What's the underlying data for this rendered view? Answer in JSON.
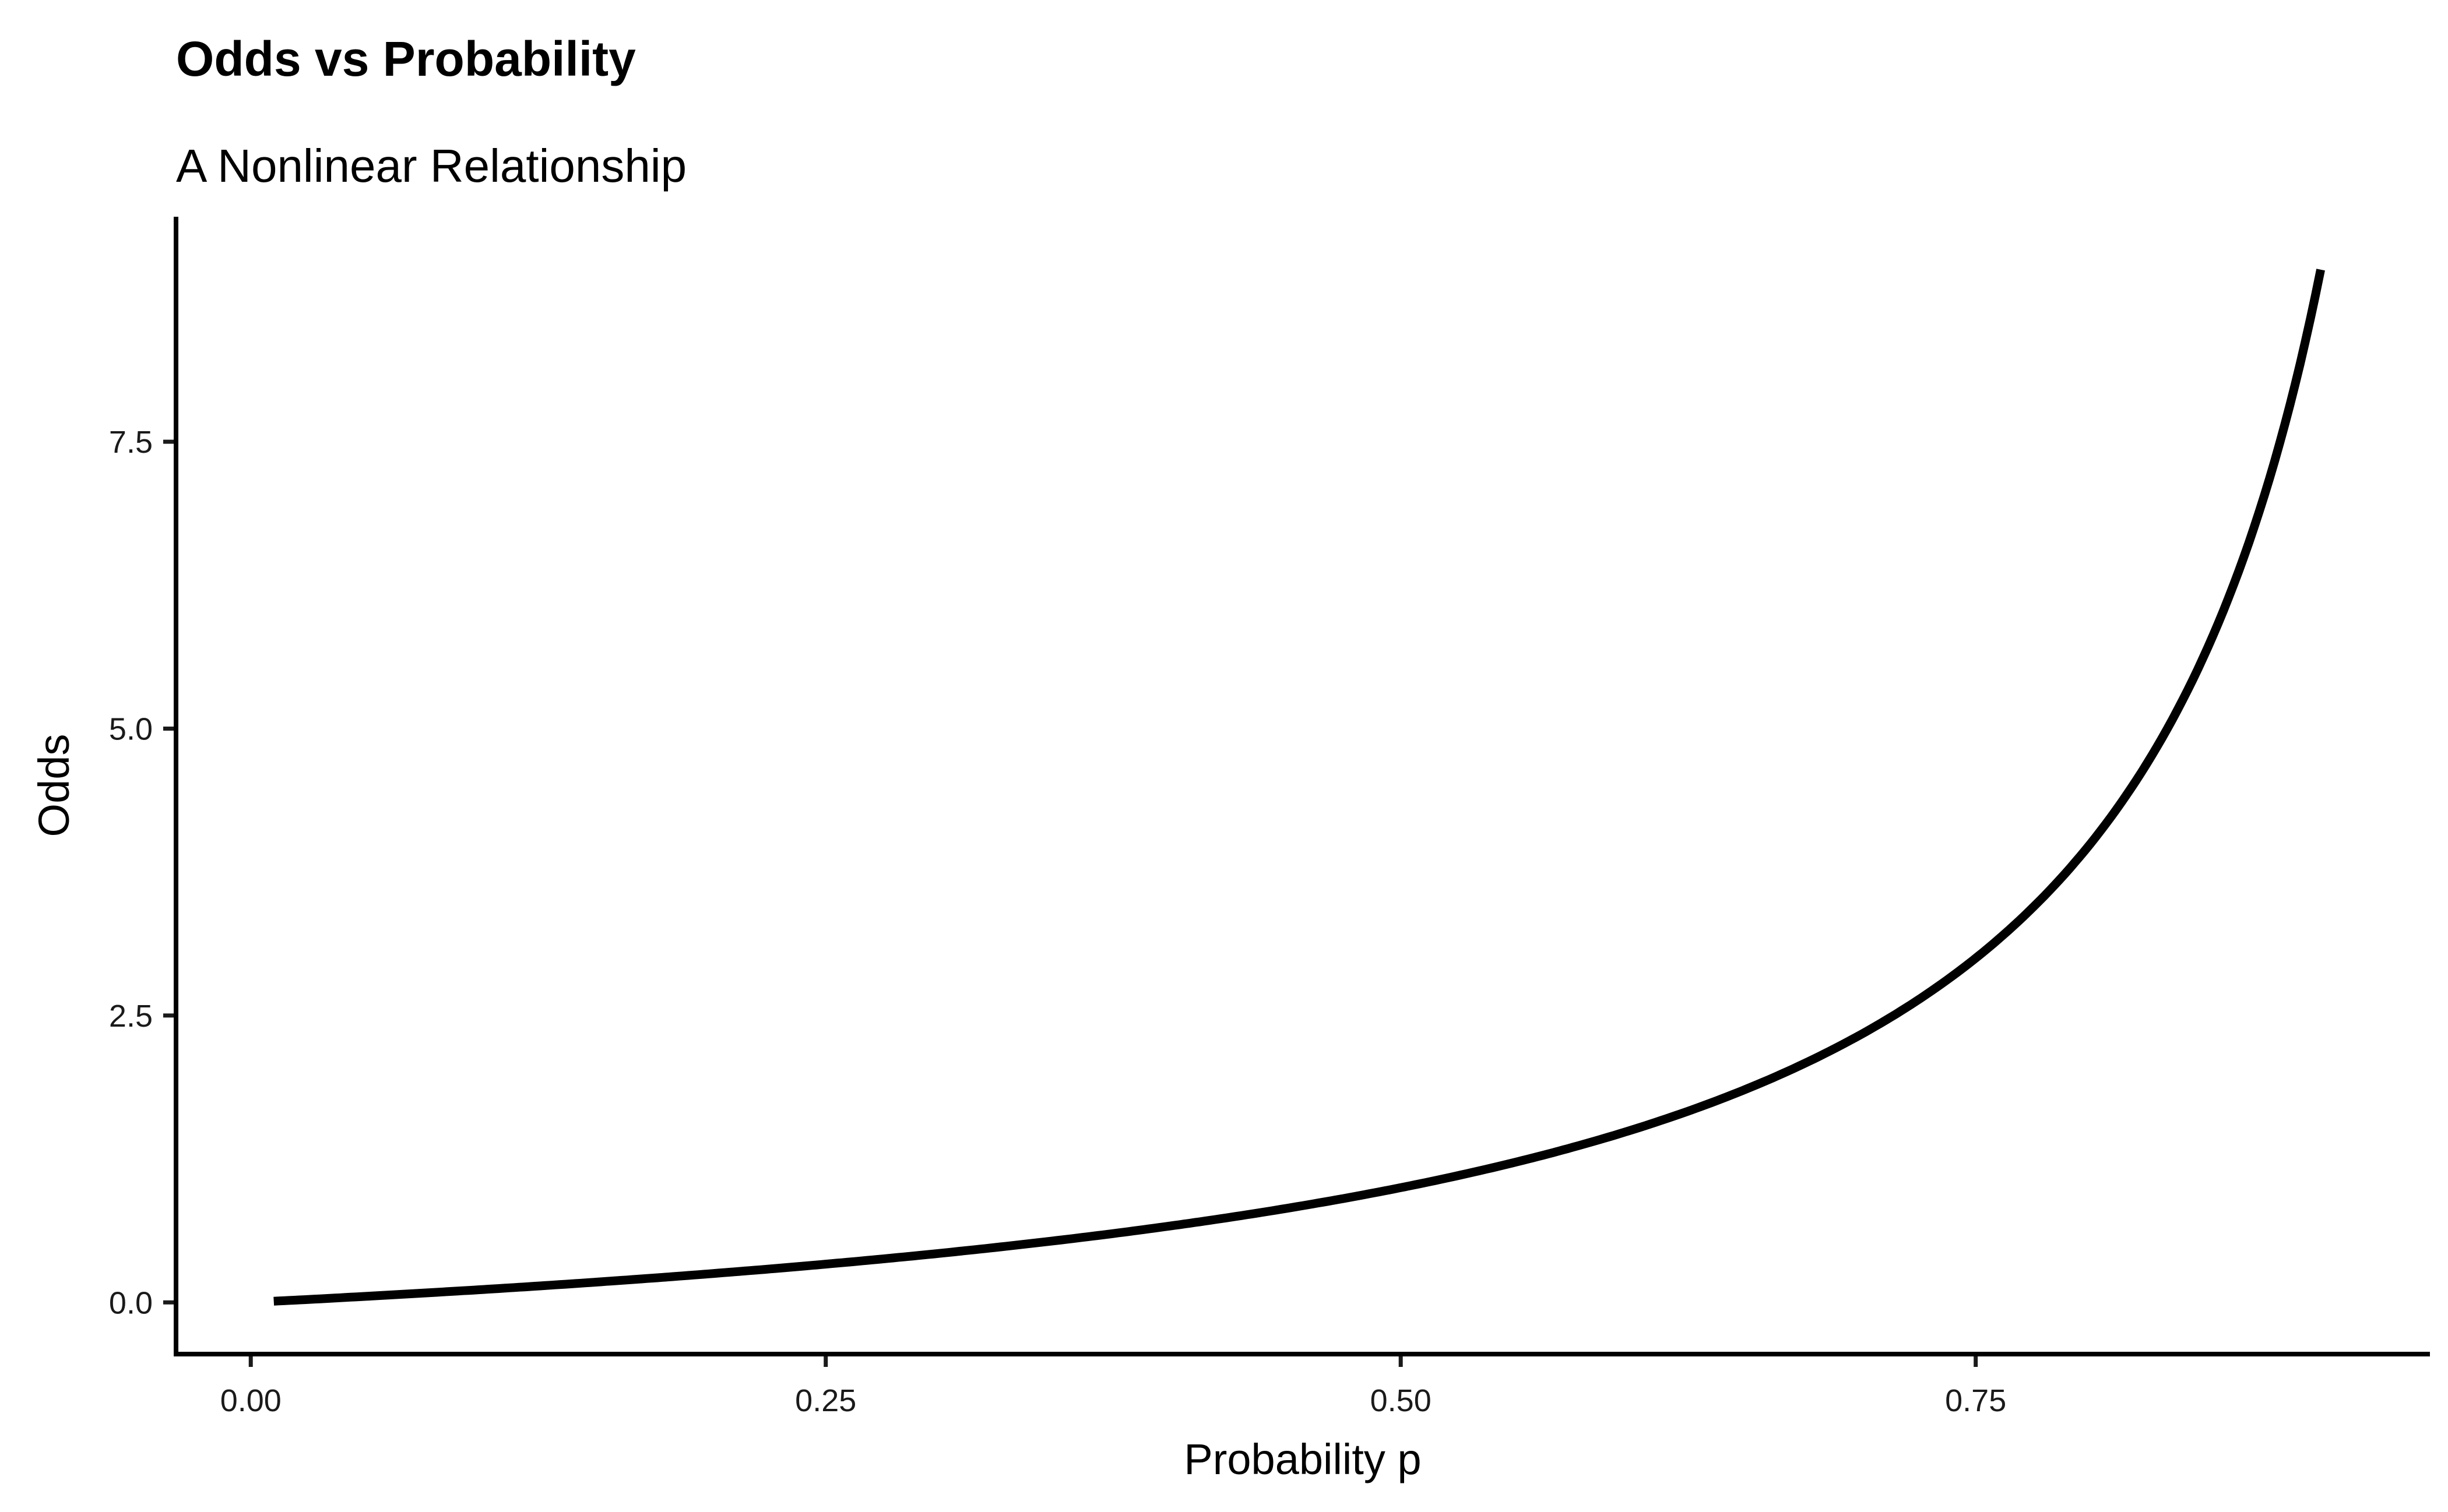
{
  "chart_data": {
    "type": "line",
    "title": "Odds vs Probability",
    "subtitle": "A Nonlinear Relationship",
    "xlabel": "Probability p",
    "ylabel": "Odds",
    "xlim": [
      -0.0325,
      0.9475
    ],
    "ylim": [
      -0.4505,
      9.4605
    ],
    "x_ticks": [
      0.0,
      0.25,
      0.5,
      0.75
    ],
    "x_tick_labels": [
      "0.00",
      "0.25",
      "0.50",
      "0.75"
    ],
    "y_ticks": [
      0.0,
      2.5,
      5.0,
      7.5
    ],
    "y_tick_labels": [
      "0.0",
      "2.5",
      "5.0",
      "7.5"
    ],
    "grid": false,
    "legend": "none",
    "line_color": "#000000",
    "series": [
      {
        "function": "p / (1 - p)",
        "x": [
          0.01,
          0.05,
          0.1,
          0.15,
          0.2,
          0.25,
          0.3,
          0.35,
          0.4,
          0.45,
          0.5,
          0.55,
          0.6,
          0.65,
          0.7,
          0.75,
          0.8,
          0.82,
          0.84,
          0.86,
          0.88,
          0.9
        ],
        "values": [
          0.0101,
          0.0526,
          0.1111,
          0.1765,
          0.25,
          0.3333,
          0.4286,
          0.5385,
          0.6667,
          0.8182,
          1.0,
          1.2222,
          1.5,
          1.8571,
          2.3333,
          3.0,
          4.0,
          4.5556,
          5.25,
          6.1429,
          7.3333,
          9.0
        ]
      }
    ]
  }
}
